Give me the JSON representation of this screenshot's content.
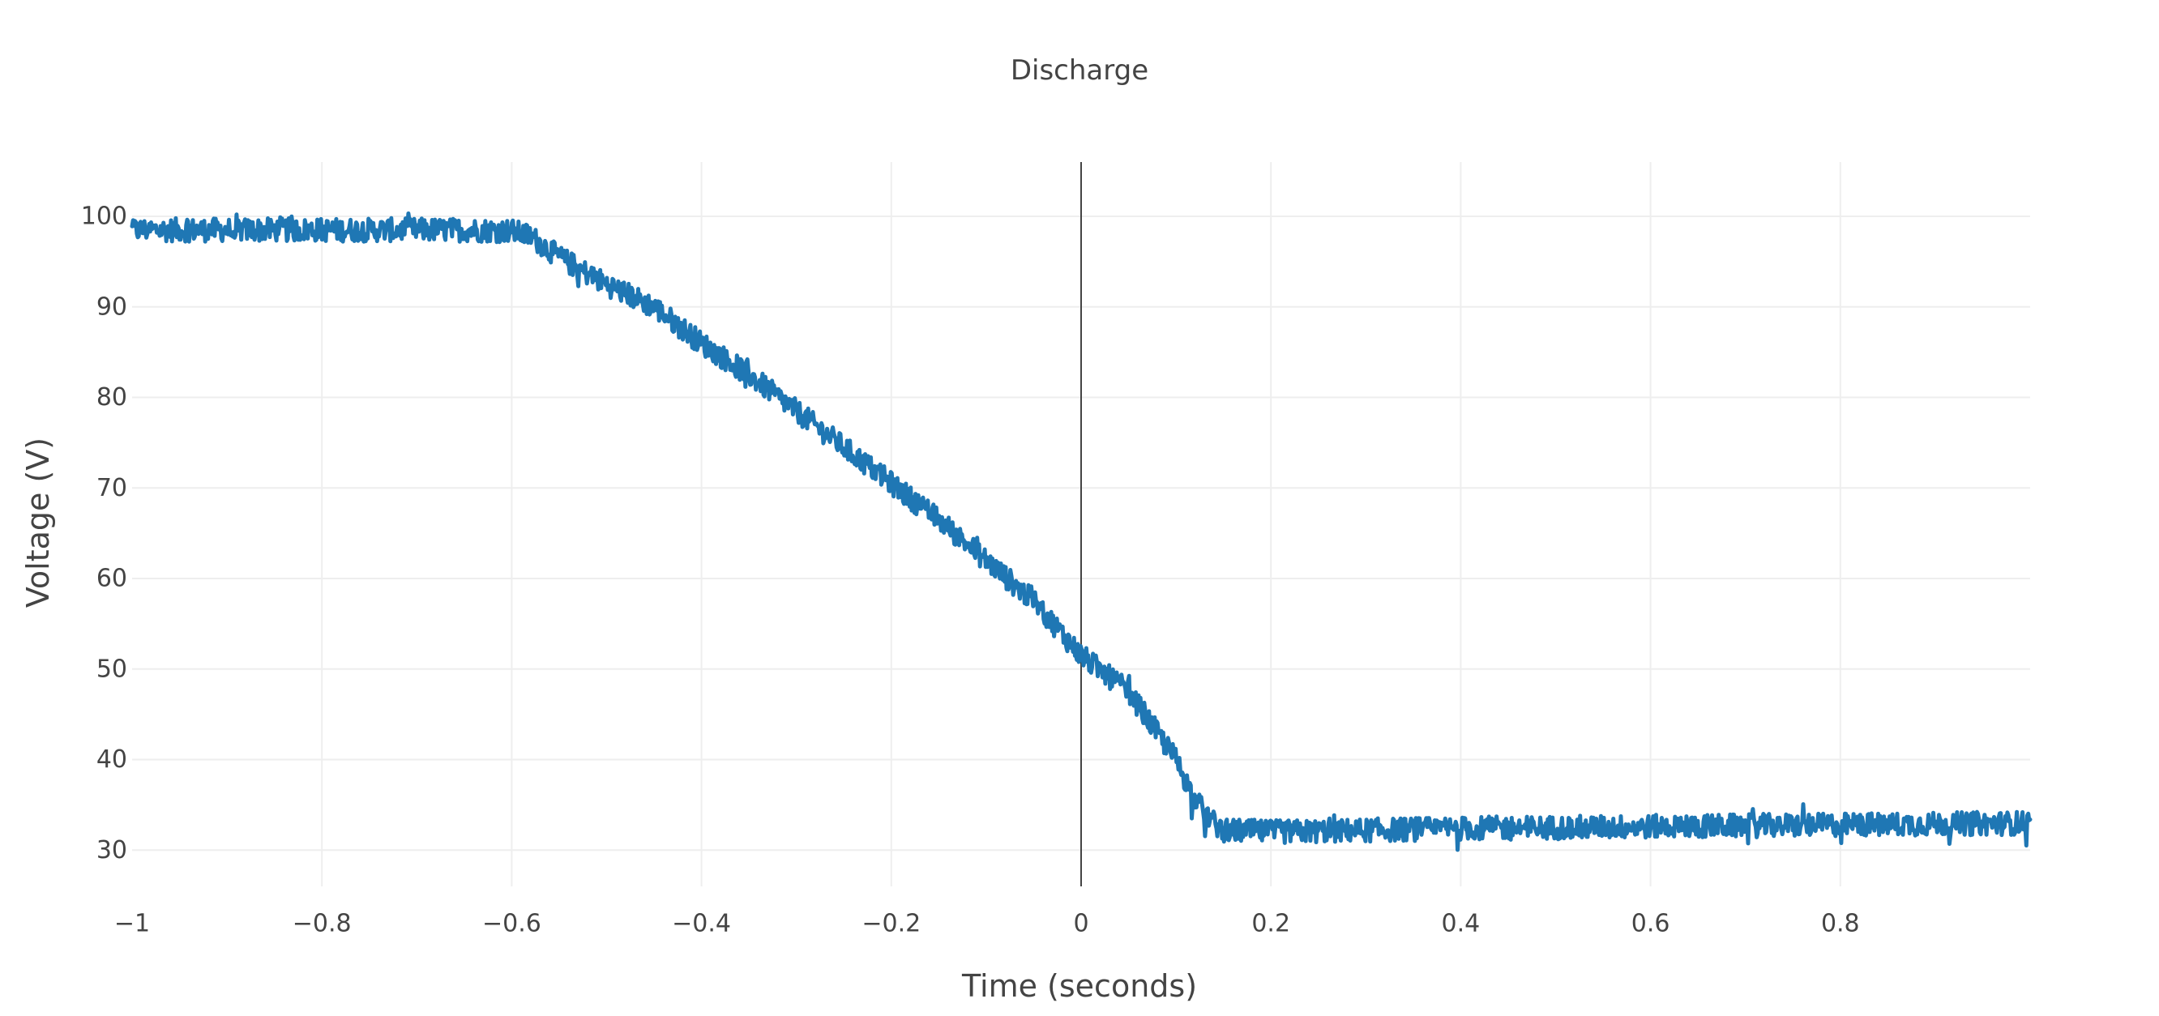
{
  "chart_data": {
    "type": "line",
    "title": "Discharge",
    "xlabel": "Time (seconds)",
    "ylabel": "Voltage (V)",
    "xlim": [
      -1,
      1
    ],
    "ylim": [
      26,
      106
    ],
    "x_ticks": [
      {
        "value": -1,
        "label": "−1"
      },
      {
        "value": -0.8,
        "label": "−0.8"
      },
      {
        "value": -0.6,
        "label": "−0.6"
      },
      {
        "value": -0.4,
        "label": "−0.4"
      },
      {
        "value": -0.2,
        "label": "−0.2"
      },
      {
        "value": 0,
        "label": "0"
      },
      {
        "value": 0.2,
        "label": "0.2"
      },
      {
        "value": 0.4,
        "label": "0.4"
      },
      {
        "value": 0.6,
        "label": "0.6"
      },
      {
        "value": 0.8,
        "label": "0.8"
      }
    ],
    "y_ticks": [
      {
        "value": 30,
        "label": "30"
      },
      {
        "value": 40,
        "label": "40"
      },
      {
        "value": 50,
        "label": "50"
      },
      {
        "value": 60,
        "label": "60"
      },
      {
        "value": 70,
        "label": "70"
      },
      {
        "value": 80,
        "label": "80"
      },
      {
        "value": 90,
        "label": "90"
      },
      {
        "value": 100,
        "label": "100"
      }
    ],
    "grid": true,
    "zero_line_x": 0,
    "series": [
      {
        "color": "#1f77b4",
        "x": [
          -1.0,
          -0.95,
          -0.9,
          -0.85,
          -0.8,
          -0.75,
          -0.7,
          -0.65,
          -0.6,
          -0.58,
          -0.55,
          -0.5,
          -0.45,
          -0.4,
          -0.35,
          -0.3,
          -0.25,
          -0.2,
          -0.15,
          -0.1,
          -0.05,
          0.0,
          0.05,
          0.1,
          0.12,
          0.14,
          0.15,
          0.2,
          0.3,
          0.4,
          0.5,
          0.6,
          0.7,
          0.8,
          0.9,
          1.0
        ],
        "y": [
          98.5,
          98.5,
          98.5,
          98.5,
          98.5,
          98.5,
          98.5,
          98.5,
          98.4,
          97.8,
          95.5,
          92.5,
          90.0,
          86.0,
          82.5,
          78.5,
          74.5,
          70.5,
          66.5,
          62.0,
          57.5,
          51.5,
          47.5,
          40.0,
          35.5,
          33.0,
          32.2,
          32.0,
          32.2,
          32.4,
          32.5,
          32.6,
          32.7,
          32.8,
          32.9,
          33.0
        ]
      }
    ]
  }
}
